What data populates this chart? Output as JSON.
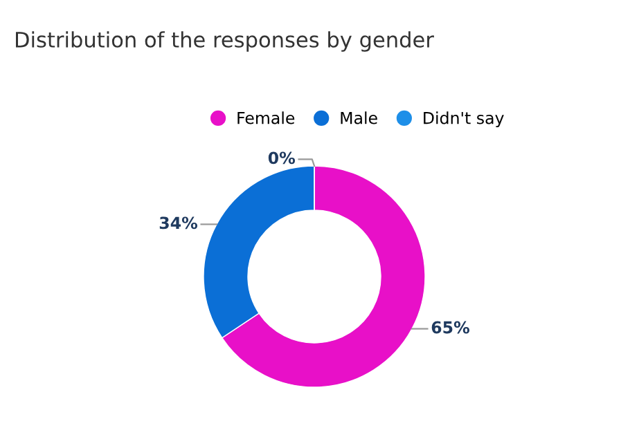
{
  "chart_data": {
    "type": "donut",
    "title": "Distribution of the responses by gender",
    "categories": [
      "Female",
      "Male",
      "Didn't say"
    ],
    "values": [
      65,
      34,
      0
    ],
    "colors": [
      "#e810c8",
      "#0b6fd6",
      "#1e8fe8"
    ],
    "value_labels": [
      "65%",
      "34%",
      "0%"
    ],
    "legend": "top"
  }
}
